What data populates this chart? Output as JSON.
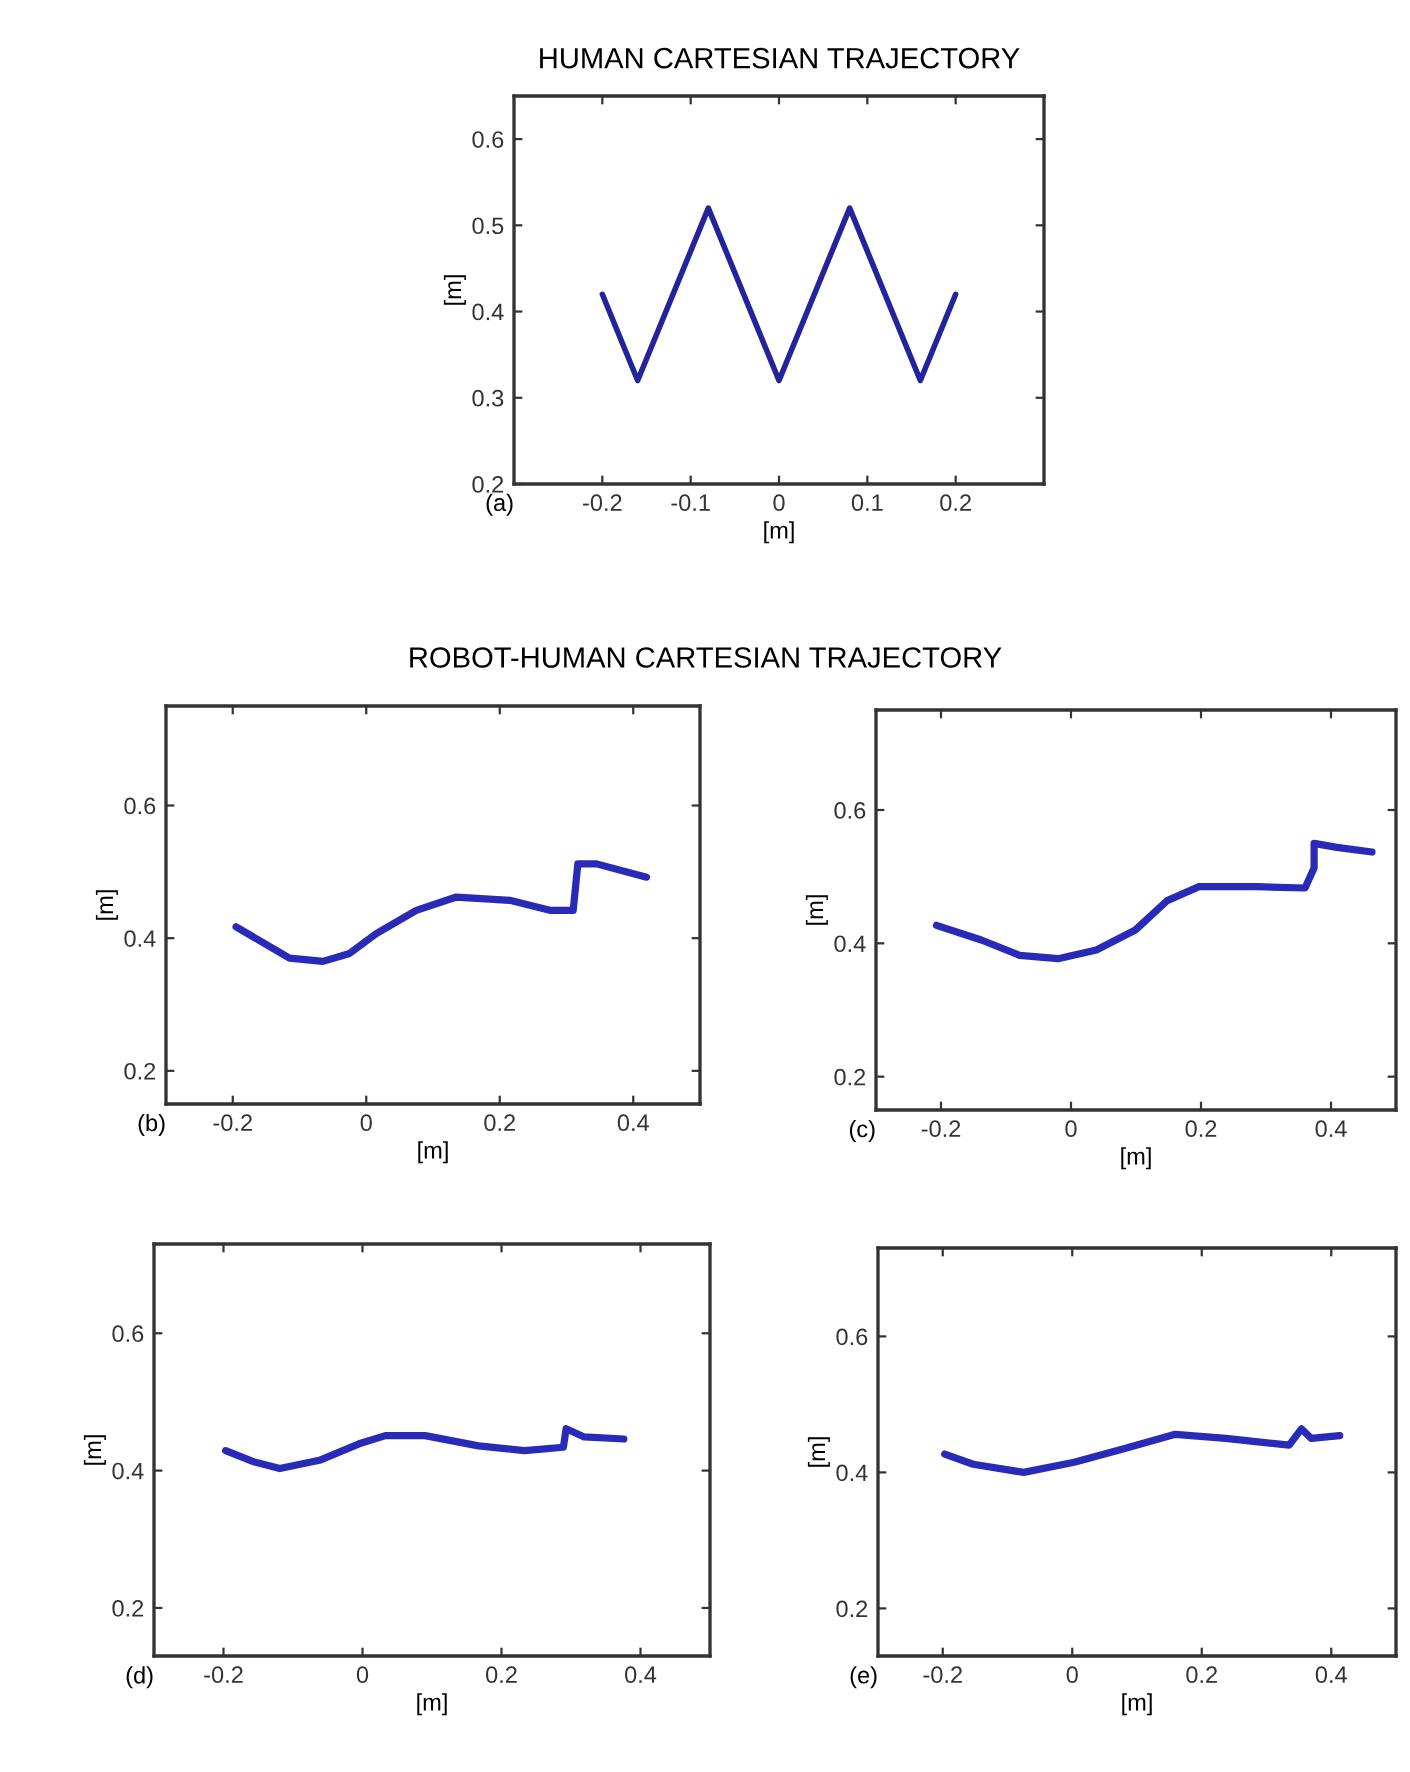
{
  "chart_data": [
    {
      "type": "line",
      "title": "HUMAN CARTESIAN TRAJECTORY",
      "xlabel": "[m]",
      "ylabel": "[m]",
      "annotations": [
        "(a)"
      ],
      "xlim": [
        -0.3,
        0.3
      ],
      "ylim": [
        0.2,
        0.65
      ],
      "xticks": [
        -0.2,
        -0.1,
        0,
        0.1,
        0.2
      ],
      "yticks": [
        0.2,
        0.3,
        0.4,
        0.5,
        0.6
      ],
      "grid": false,
      "legend": false,
      "series": [
        {
          "color": "#24249a",
          "x": [
            -0.2,
            -0.16,
            -0.08,
            0,
            0.08,
            0.16,
            0.2
          ],
          "values": [
            0.42,
            0.32,
            0.52,
            0.32,
            0.52,
            0.32,
            0.42
          ]
        }
      ]
    },
    {
      "type": "line",
      "title": "ROBOT-HUMAN CARTESIAN TRAJECTORY",
      "xlabel": "[m]",
      "ylabel": "[m]",
      "annotations": [
        "(b)"
      ],
      "xlim": [
        -0.3,
        0.5
      ],
      "ylim": [
        0.15,
        0.75
      ],
      "xticks": [
        -0.2,
        0,
        0.2,
        0.4
      ],
      "yticks": [
        0.2,
        0.4,
        0.6
      ],
      "grid": false,
      "legend": false,
      "series": [
        {
          "color": "#2a2ab8",
          "x": [
            -0.195,
            -0.115,
            -0.065,
            -0.025,
            0.015,
            0.075,
            0.135,
            0.215,
            0.275,
            0.31,
            0.317,
            0.345,
            0.42
          ],
          "values": [
            0.417,
            0.37,
            0.365,
            0.377,
            0.407,
            0.442,
            0.462,
            0.457,
            0.442,
            0.442,
            0.512,
            0.512,
            0.492
          ]
        }
      ]
    },
    {
      "type": "line",
      "xlabel": "[m]",
      "ylabel": "[m]",
      "annotations": [
        "(c)"
      ],
      "xlim": [
        -0.3,
        0.5
      ],
      "ylim": [
        0.15,
        0.75
      ],
      "xticks": [
        -0.2,
        0,
        0.2,
        0.4
      ],
      "yticks": [
        0.2,
        0.4,
        0.6
      ],
      "grid": false,
      "legend": false,
      "series": [
        {
          "color": "#2a2ab8",
          "x": [
            -0.207,
            -0.138,
            -0.079,
            -0.02,
            0.039,
            0.099,
            0.148,
            0.197,
            0.286,
            0.36,
            0.374,
            0.374,
            0.409,
            0.463
          ],
          "values": [
            0.427,
            0.405,
            0.382,
            0.377,
            0.39,
            0.42,
            0.464,
            0.485,
            0.485,
            0.483,
            0.513,
            0.55,
            0.544,
            0.537
          ]
        }
      ]
    },
    {
      "type": "line",
      "xlabel": "[m]",
      "ylabel": "[m]",
      "annotations": [
        "(d)"
      ],
      "xlim": [
        -0.3,
        0.5
      ],
      "ylim": [
        0.13,
        0.73
      ],
      "xticks": [
        -0.2,
        0,
        0.2,
        0.4
      ],
      "yticks": [
        0.2,
        0.4,
        0.6
      ],
      "grid": false,
      "legend": false,
      "series": [
        {
          "color": "#2a2ab8",
          "x": [
            -0.197,
            -0.157,
            -0.119,
            -0.062,
            -0.005,
            0.033,
            0.09,
            0.167,
            0.233,
            0.289,
            0.293,
            0.319,
            0.376
          ],
          "values": [
            0.429,
            0.413,
            0.403,
            0.415,
            0.439,
            0.451,
            0.451,
            0.436,
            0.429,
            0.434,
            0.461,
            0.449,
            0.446
          ]
        }
      ]
    },
    {
      "type": "line",
      "xlabel": "[m]",
      "ylabel": "[m]",
      "annotations": [
        "(e)"
      ],
      "xlim": [
        -0.3,
        0.5
      ],
      "ylim": [
        0.13,
        0.73
      ],
      "xticks": [
        -0.2,
        0,
        0.2,
        0.4
      ],
      "yticks": [
        0.2,
        0.4,
        0.6
      ],
      "grid": false,
      "legend": false,
      "series": [
        {
          "color": "#2a2ab8",
          "x": [
            -0.197,
            -0.153,
            -0.075,
            0.003,
            0.081,
            0.159,
            0.237,
            0.335,
            0.354,
            0.369,
            0.413
          ],
          "values": [
            0.427,
            0.412,
            0.4,
            0.415,
            0.435,
            0.456,
            0.45,
            0.44,
            0.464,
            0.45,
            0.454
          ]
        }
      ]
    }
  ]
}
